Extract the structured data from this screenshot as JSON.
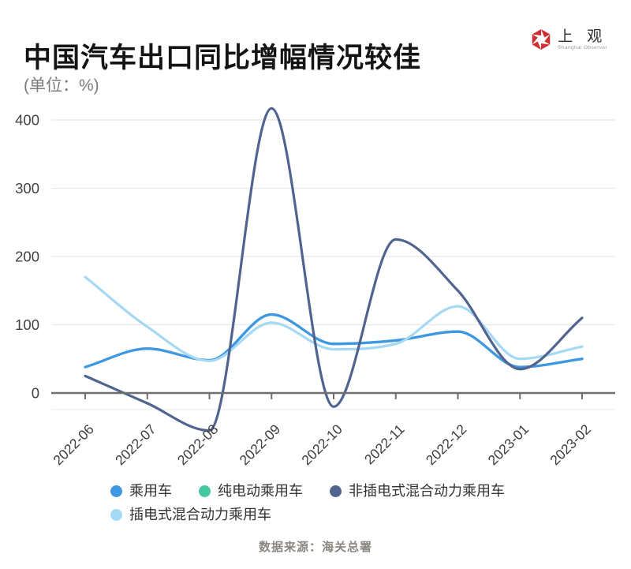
{
  "header": {
    "title": "中国汽车出口同比增幅情况较佳",
    "unit": "(单位：%)"
  },
  "logo": {
    "name": "上 观",
    "subname": "Shanghai Observer",
    "icon_color": "#ce2f32"
  },
  "footer": {
    "source": "数据来源：海关总署"
  },
  "colors": {
    "grid": "#e7e7e7",
    "grid_faint": "#ededed",
    "axis": "#6f6f6f",
    "axis_label": "#424242"
  },
  "chart_data": {
    "type": "line",
    "smooth": true,
    "grid": true,
    "legend_position": "bottom",
    "title": "中国汽车出口同比增幅情况较佳",
    "ylabel": "(单位：%)",
    "x": [
      "2022-06",
      "2022-07",
      "2022-08",
      "2022-09",
      "2022-10",
      "2022-11",
      "2022-12",
      "2023-01",
      "2023-02"
    ],
    "y_ticks": [
      0,
      100,
      200,
      300,
      400
    ],
    "ylim": [
      -60,
      435
    ],
    "series": [
      {
        "name": "乘用车",
        "color": "#3f97e3",
        "values": [
          38,
          65,
          48,
          115,
          72,
          77,
          90,
          38,
          50
        ]
      },
      {
        "name": "纯电动乘用车",
        "color": "#45c8a1",
        "values": [
          38,
          65,
          48,
          115,
          72,
          77,
          90,
          38,
          50
        ],
        "note": "curve coincides with 乘用车 and is hidden beneath it"
      },
      {
        "name": "非插电式混合动力乘用车",
        "color": "#51648f",
        "values": [
          25,
          -15,
          -55,
          417,
          -20,
          225,
          150,
          35,
          110
        ]
      },
      {
        "name": "插电式混合动力乘用车",
        "color": "#a5d9f3",
        "values": [
          170,
          97,
          47,
          103,
          64,
          72,
          127,
          50,
          68
        ]
      }
    ],
    "draw_order": [
      1,
      0,
      3,
      2
    ],
    "source": "数据来源：海关总署"
  }
}
